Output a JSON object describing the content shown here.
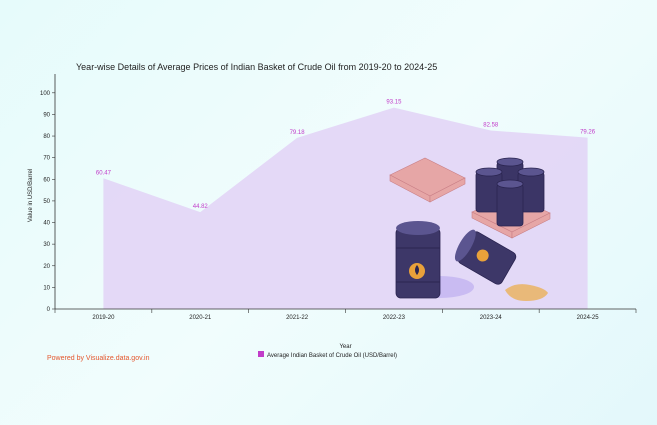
{
  "powered_by": "Powered by Visualize.data.gov.in",
  "chart_data": {
    "type": "area",
    "title": "Year-wise Details of Average Prices of Indian Basket of Crude Oil from 2019-20 to 2024-25",
    "xlabel": "Year",
    "ylabel": "Value in USD/Barrel",
    "categories": [
      "2019-20",
      "2020-21",
      "2021-22",
      "2022-23",
      "2023-24",
      "2024-25"
    ],
    "series": [
      {
        "name": "Average Indian Basket of Crude Oil (USD/Barrel)",
        "values": [
          60.47,
          44.82,
          79.18,
          93.15,
          82.58,
          79.26
        ],
        "labels": [
          "60.47",
          "44.82",
          "79.18",
          "93.15",
          "82.58",
          "79.26"
        ]
      }
    ],
    "ylim": [
      0,
      105
    ],
    "yticks": [
      0,
      10,
      20,
      30,
      40,
      50,
      60,
      70,
      80,
      90,
      100
    ],
    "legend_position": "bottom",
    "colors": {
      "area": "#e2d2f6",
      "label": "#c13cc9",
      "legend": "#c13cc9"
    }
  }
}
